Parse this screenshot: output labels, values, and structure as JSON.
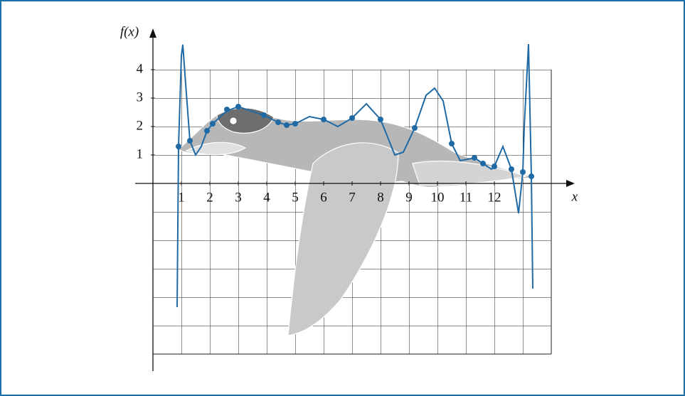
{
  "chart_data": {
    "type": "line",
    "y_label": "f(x)",
    "x_label": "x",
    "xlim": [
      0,
      14
    ],
    "ylim": [
      -6,
      4
    ],
    "xticks": [
      1,
      2,
      3,
      4,
      5,
      6,
      7,
      8,
      9,
      10,
      11,
      12
    ],
    "yticks": [
      1,
      2,
      3,
      4
    ],
    "grid": true,
    "series": [
      {
        "color": "#1f6aa5",
        "marker": "line",
        "x": [
          0.85,
          0.9,
          1.0,
          1.05,
          1.15,
          1.3,
          1.5,
          1.7,
          1.9,
          2.1,
          2.6,
          3.0,
          3.9,
          4.4,
          4.7,
          5.0,
          5.5,
          6.0,
          6.5,
          7.0,
          7.5,
          8.0,
          8.5,
          8.8,
          9.2,
          9.6,
          9.9,
          10.2,
          10.5,
          10.8,
          11.3,
          11.6,
          11.9,
          12.0,
          12.3,
          12.6,
          12.85,
          13.0,
          13.05,
          13.2,
          13.3,
          13.35
        ],
        "values": [
          -4.35,
          1.3,
          4.5,
          4.88,
          3.5,
          1.5,
          1.0,
          1.3,
          1.85,
          2.1,
          2.55,
          2.7,
          2.4,
          2.15,
          2.05,
          2.1,
          2.35,
          2.25,
          2.0,
          2.3,
          2.8,
          2.25,
          1.0,
          1.1,
          1.95,
          3.1,
          3.35,
          2.9,
          1.4,
          0.8,
          0.9,
          0.7,
          0.5,
          0.6,
          1.3,
          0.5,
          -1.05,
          0.4,
          2.0,
          4.9,
          0.25,
          -3.7
        ]
      },
      {
        "color": "#1f6aa5",
        "marker": "point",
        "x": [
          0.9,
          1.3,
          1.9,
          2.1,
          2.6,
          3.0,
          3.9,
          4.4,
          4.7,
          5.0,
          6.0,
          7.0,
          8.0,
          9.2,
          10.5,
          11.3,
          11.6,
          12.0,
          12.6,
          13.0,
          13.3
        ],
        "values": [
          1.3,
          1.5,
          1.85,
          2.1,
          2.6,
          2.7,
          2.4,
          2.15,
          2.05,
          2.1,
          2.25,
          2.3,
          2.25,
          1.95,
          1.4,
          0.9,
          0.7,
          0.6,
          0.5,
          0.4,
          0.25
        ]
      }
    ]
  }
}
